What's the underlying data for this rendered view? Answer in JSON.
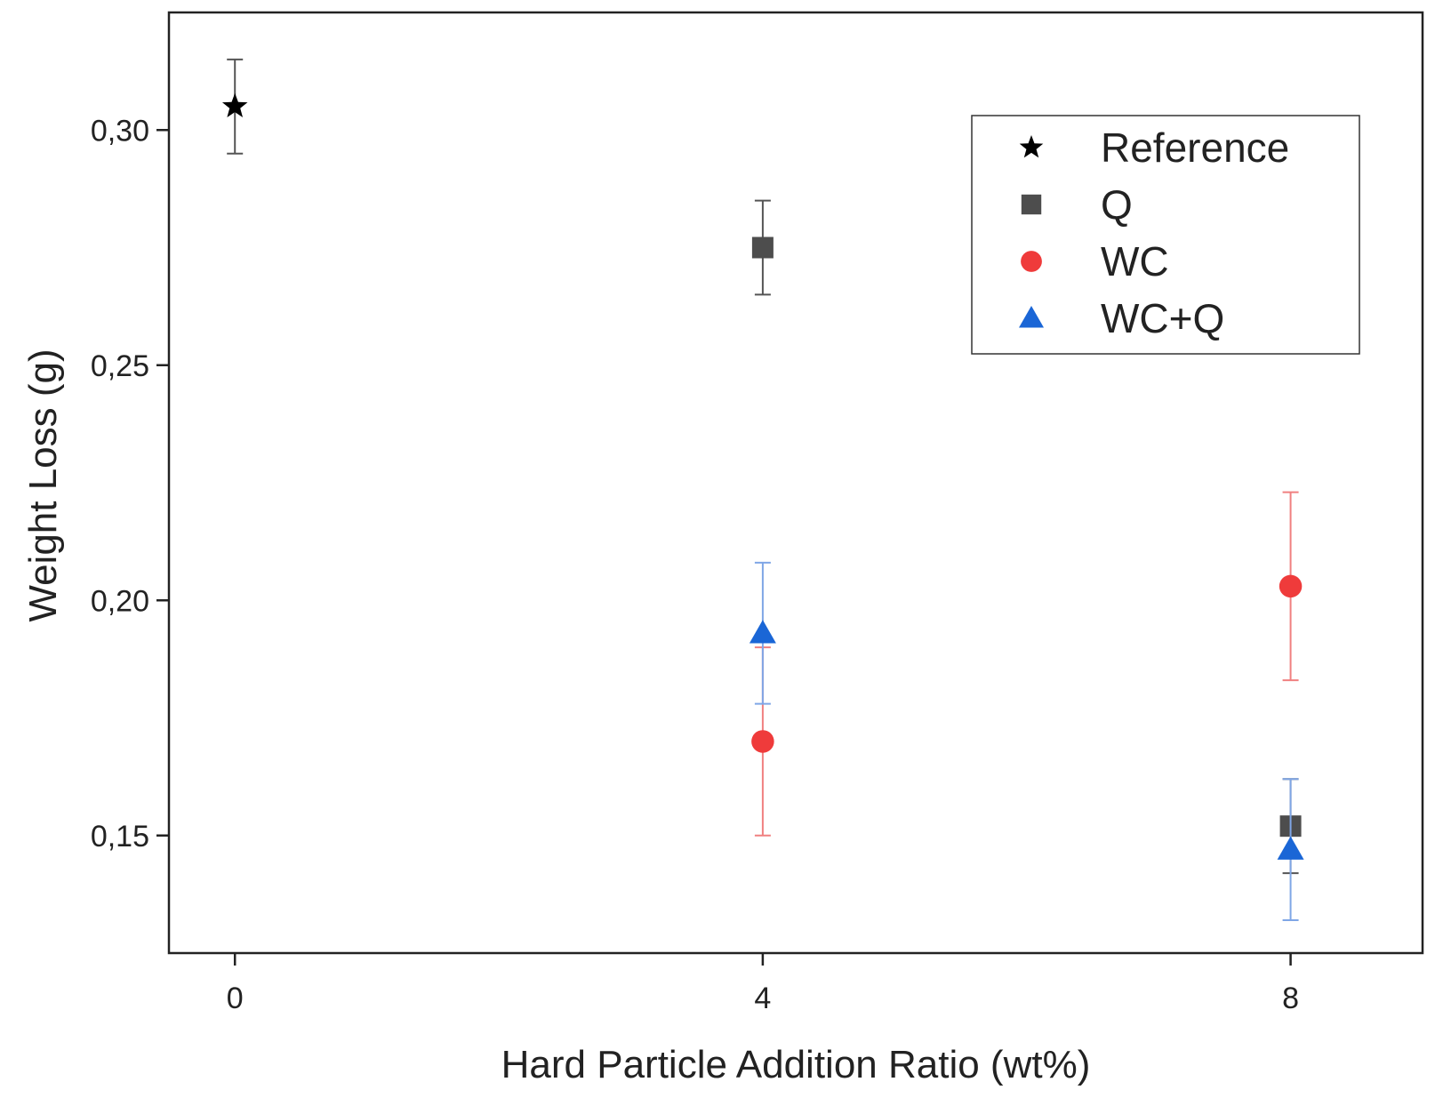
{
  "chart_data": {
    "type": "scatter",
    "title": "",
    "xlabel": "Hard Particle Addition Ratio (wt%)",
    "ylabel": "Weight Loss (g)",
    "xlim": [
      -0.5,
      9.0
    ],
    "ylim": [
      0.125,
      0.325
    ],
    "x_ticks": [
      {
        "value": 0,
        "label": "0"
      },
      {
        "value": 4,
        "label": "4"
      },
      {
        "value": 8,
        "label": "8"
      }
    ],
    "y_ticks": [
      {
        "value": 0.15,
        "label": "0,15"
      },
      {
        "value": 0.2,
        "label": "0,20"
      },
      {
        "value": 0.25,
        "label": "0,25"
      },
      {
        "value": 0.3,
        "label": "0,30"
      }
    ],
    "grid": false,
    "legend_position": "top-right",
    "series": [
      {
        "name": "Reference",
        "marker": "star",
        "color": "#000000",
        "error_color": "#555555",
        "points": [
          {
            "x": 0,
            "y": 0.305,
            "err": 0.01
          }
        ]
      },
      {
        "name": "Q",
        "marker": "square",
        "color": "#4d4d4d",
        "error_color": "#555555",
        "points": [
          {
            "x": 4,
            "y": 0.275,
            "err": 0.01
          },
          {
            "x": 8,
            "y": 0.152,
            "err": 0.01
          }
        ]
      },
      {
        "name": "WC",
        "marker": "circle",
        "color": "#ef3b3b",
        "error_color": "#f08080",
        "points": [
          {
            "x": 4,
            "y": 0.17,
            "err": 0.02
          },
          {
            "x": 8,
            "y": 0.203,
            "err": 0.02
          }
        ]
      },
      {
        "name": "WC+Q",
        "marker": "triangle",
        "color": "#1a66d6",
        "error_color": "#7fa6e6",
        "points": [
          {
            "x": 4,
            "y": 0.193,
            "err": 0.015
          },
          {
            "x": 8,
            "y": 0.147,
            "err": 0.015
          }
        ]
      }
    ]
  }
}
